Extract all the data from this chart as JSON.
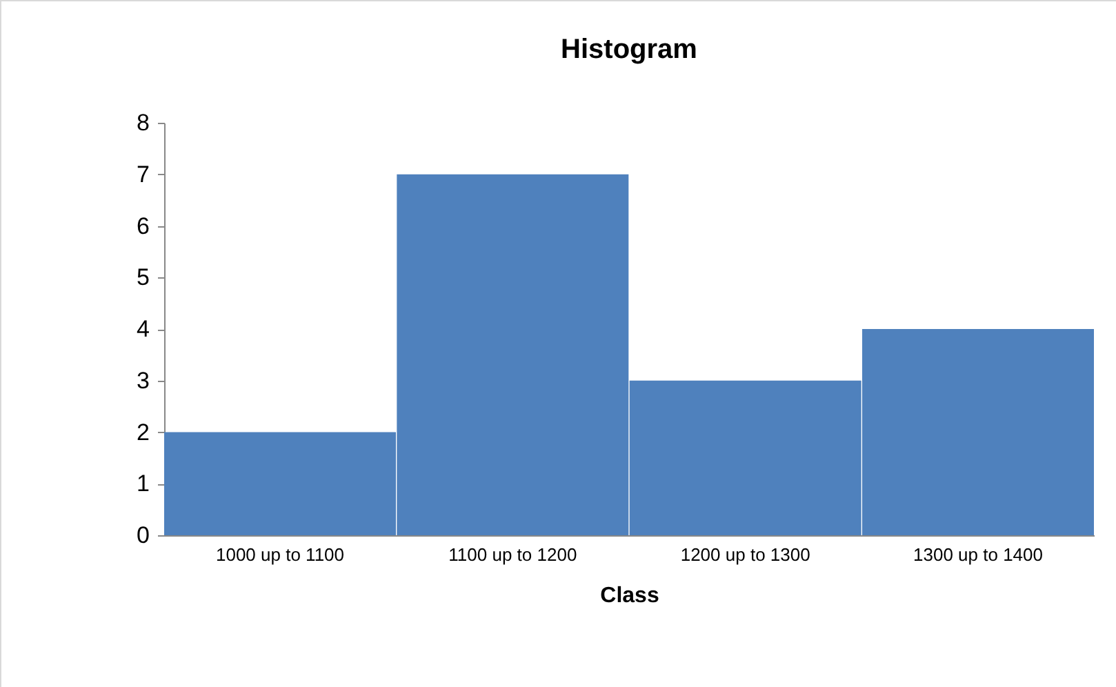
{
  "chart_data": {
    "type": "bar",
    "title": "Histogram",
    "xlabel": "Class",
    "categories": [
      "1000 up to 1100",
      "1100 up to 1200",
      "1200 up to 1300",
      "1300 up to 1400"
    ],
    "values": [
      2,
      7,
      3,
      4
    ],
    "color": "#4f81bd",
    "ylim": [
      0,
      8
    ],
    "yticks": [
      0,
      1,
      2,
      3,
      4,
      5,
      6,
      7,
      8
    ],
    "grid": false
  }
}
